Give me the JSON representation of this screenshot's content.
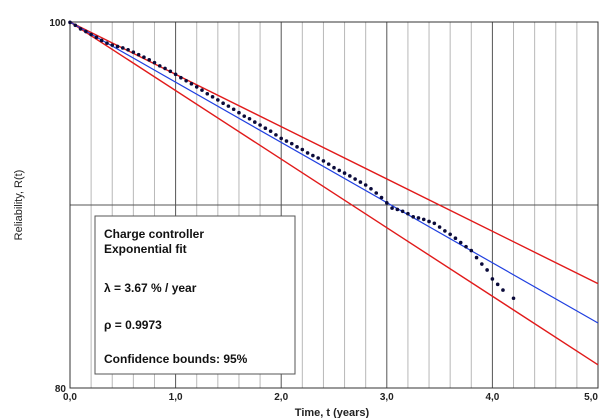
{
  "chart_data": {
    "type": "scatter",
    "title": "",
    "xlabel": "Time, t (years)",
    "ylabel": "Reliability, R(t)",
    "xlim": [
      0,
      5
    ],
    "y_scale": "log",
    "y_tick_labels": [
      "100",
      "80"
    ],
    "x_tick_labels": [
      "0,0",
      "1,0",
      "2,0",
      "3,0",
      "4,0",
      "5,0"
    ],
    "grid": true,
    "legend_position": "bottom-left",
    "legend": {
      "line1": "Charge controller",
      "line2": "Exponential fit",
      "lambda": "λ = 3.67 % / year",
      "rho": "ρ = 0.9973",
      "confidence": "Confidence bounds: 95%"
    },
    "fit": {
      "lambda_per_year": 0.0367,
      "color": "#1f3fe0"
    },
    "upper_bound": {
      "lambda_per_year": 0.0319,
      "color": "#e11a1a"
    },
    "lower_bound": {
      "lambda_per_year": 0.0418,
      "color": "#e11a1a"
    },
    "points_color": "#0a0a3a",
    "series": [
      {
        "x": [
          0.0,
          0.05,
          0.1,
          0.15,
          0.2,
          0.25,
          0.3,
          0.35,
          0.4,
          0.45,
          0.5,
          0.55,
          0.6,
          0.65,
          0.7,
          0.75,
          0.8,
          0.85,
          0.9,
          0.95,
          1.0,
          1.05,
          1.1,
          1.15,
          1.2,
          1.25,
          1.3,
          1.35,
          1.4,
          1.45,
          1.5,
          1.55,
          1.6,
          1.65,
          1.7,
          1.75,
          1.8,
          1.85,
          1.9,
          1.95,
          2.0,
          2.05,
          2.1,
          2.15,
          2.2,
          2.25,
          2.3,
          2.35,
          2.4,
          2.45,
          2.5,
          2.55,
          2.6,
          2.65,
          2.7,
          2.75,
          2.8,
          2.85,
          2.9,
          2.95,
          3.0,
          3.05,
          3.1,
          3.15,
          3.2,
          3.25,
          3.3,
          3.35,
          3.4,
          3.45,
          3.5,
          3.55,
          3.6,
          3.65,
          3.7,
          3.75,
          3.8,
          3.85,
          3.9,
          3.95,
          4.0,
          4.05,
          4.1,
          4.2
        ],
        "y": [
          99.98,
          99.8,
          99.58,
          99.42,
          99.24,
          99.07,
          98.88,
          98.72,
          98.6,
          98.52,
          98.43,
          98.32,
          98.18,
          98.03,
          97.88,
          97.72,
          97.55,
          97.36,
          97.21,
          97.04,
          96.86,
          96.66,
          96.48,
          96.3,
          96.12,
          95.93,
          95.72,
          95.54,
          95.36,
          95.17,
          95.0,
          94.82,
          94.62,
          94.42,
          94.27,
          94.08,
          93.91,
          93.73,
          93.56,
          93.35,
          93.15,
          93.0,
          92.85,
          92.67,
          92.52,
          92.33,
          92.18,
          92.04,
          91.88,
          91.7,
          91.5,
          91.35,
          91.2,
          91.04,
          90.87,
          90.7,
          90.54,
          90.33,
          90.1,
          89.85,
          89.56,
          89.27,
          89.2,
          89.1,
          88.97,
          88.8,
          88.74,
          88.66,
          88.55,
          88.45,
          88.25,
          88.04,
          87.86,
          87.65,
          87.42,
          87.2,
          86.99,
          86.62,
          86.28,
          85.97,
          85.5,
          85.22,
          84.92,
          84.5
        ]
      }
    ]
  }
}
